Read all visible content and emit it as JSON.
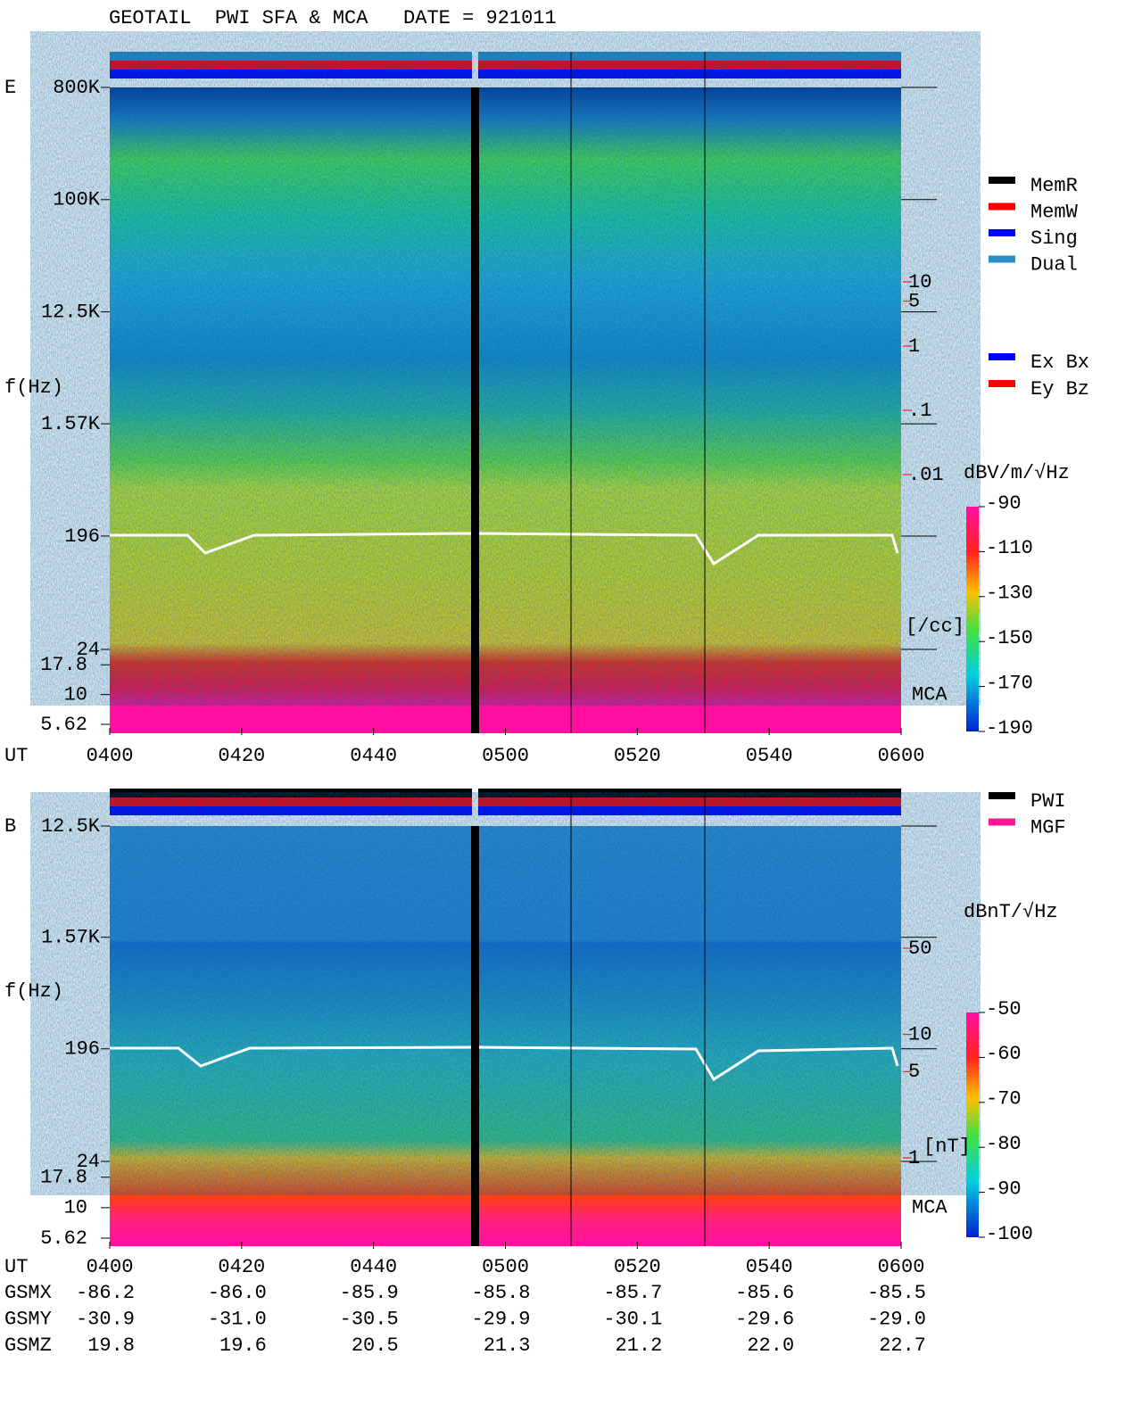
{
  "title": "GEOTAIL  PWI SFA & MCA   DATE = 921011",
  "chart_data": [
    {
      "type": "spectrogram",
      "panel": "E",
      "y_label": "f(Hz)",
      "x_label": "UT",
      "xlim": [
        240,
        360
      ],
      "xticks": [
        {
          "value": 240,
          "label": "0400"
        },
        {
          "value": 260,
          "label": "0420"
        },
        {
          "value": 280,
          "label": "0440"
        },
        {
          "value": 300,
          "label": "0500"
        },
        {
          "value": 320,
          "label": "0520"
        },
        {
          "value": 340,
          "label": "0540"
        },
        {
          "value": 360,
          "label": "0600"
        }
      ],
      "ylim": [
        24,
        800000
      ],
      "yticks": [
        {
          "value": 800000,
          "label": "800K"
        },
        {
          "value": 100000,
          "label": "100K"
        },
        {
          "value": 12500,
          "label": "12.5K"
        },
        {
          "value": 1570,
          "label": "1.57K"
        },
        196,
        24
      ],
      "mca_ylim": [
        5.62,
        24
      ],
      "mca_yticks": [
        17.8,
        10,
        5.62
      ],
      "mca_label": "MCA",
      "colorbar": {
        "label": "dBV/m/√Hz",
        "lim": [
          -190,
          -90
        ],
        "ticks": [
          -90,
          -110,
          -130,
          -150,
          -170,
          -190
        ]
      },
      "density": {
        "unit": "[/cc]",
        "lim": [
          0.01,
          10
        ],
        "ticks": [
          10,
          5,
          1,
          {
            "value": 0.1,
            "label": ".1"
          },
          {
            "value": 0.01,
            "label": ".01"
          }
        ]
      },
      "legend": [
        {
          "name": "MemR",
          "color": "#000000"
        },
        {
          "name": "MemW",
          "color": "#ff0000"
        },
        {
          "name": "Sing",
          "color": "#0000ff"
        },
        {
          "name": "Dual",
          "color": "#2a8fc6"
        }
      ],
      "legend2": [
        {
          "name": "Ex Bx",
          "color": "#0000ff"
        },
        {
          "name": "Ey Bz",
          "color": "#ff0000"
        }
      ]
    },
    {
      "type": "spectrogram",
      "panel": "B",
      "y_label": "f(Hz)",
      "x_label": "UT",
      "xlim": [
        240,
        360
      ],
      "xticks": [
        {
          "value": 240,
          "label": "0400"
        },
        {
          "value": 260,
          "label": "0420"
        },
        {
          "value": 280,
          "label": "0440"
        },
        {
          "value": 300,
          "label": "0500"
        },
        {
          "value": 320,
          "label": "0520"
        },
        {
          "value": 340,
          "label": "0540"
        },
        {
          "value": 360,
          "label": "0600"
        }
      ],
      "ylim": [
        24,
        12500
      ],
      "yticks": [
        {
          "value": 12500,
          "label": "12.5K"
        },
        {
          "value": 1570,
          "label": "1.57K"
        },
        196,
        24
      ],
      "mca_ylim": [
        5.62,
        24
      ],
      "mca_yticks": [
        17.8,
        10,
        5.62
      ],
      "mca_label": "MCA",
      "colorbar": {
        "label": "dBnT/√Hz",
        "lim": [
          -100,
          -50
        ],
        "ticks": [
          -50,
          -60,
          -70,
          -80,
          -90,
          -100
        ]
      },
      "density": {
        "unit": "[nT]",
        "lim": [
          1,
          50
        ],
        "ticks": [
          50,
          10,
          5,
          1
        ]
      },
      "legend": [
        {
          "name": "PWI",
          "color": "#000000"
        },
        {
          "name": "MGF",
          "color": "#ff1493"
        }
      ]
    }
  ],
  "orbit": {
    "rows": [
      {
        "label": "GSMX",
        "values": [
          "-86.2",
          "-86.0",
          "-85.9",
          "-85.8",
          "-85.7",
          "-85.6",
          "-85.5"
        ]
      },
      {
        "label": "GSMY",
        "values": [
          "-30.9",
          "-31.0",
          "-30.5",
          "-29.9",
          "-30.1",
          "-29.6",
          "-29.0"
        ]
      },
      {
        "label": "GSMZ",
        "values": [
          "19.8",
          "19.6",
          "20.5",
          "21.3",
          "21.2",
          "22.0",
          "22.7"
        ]
      }
    ]
  }
}
